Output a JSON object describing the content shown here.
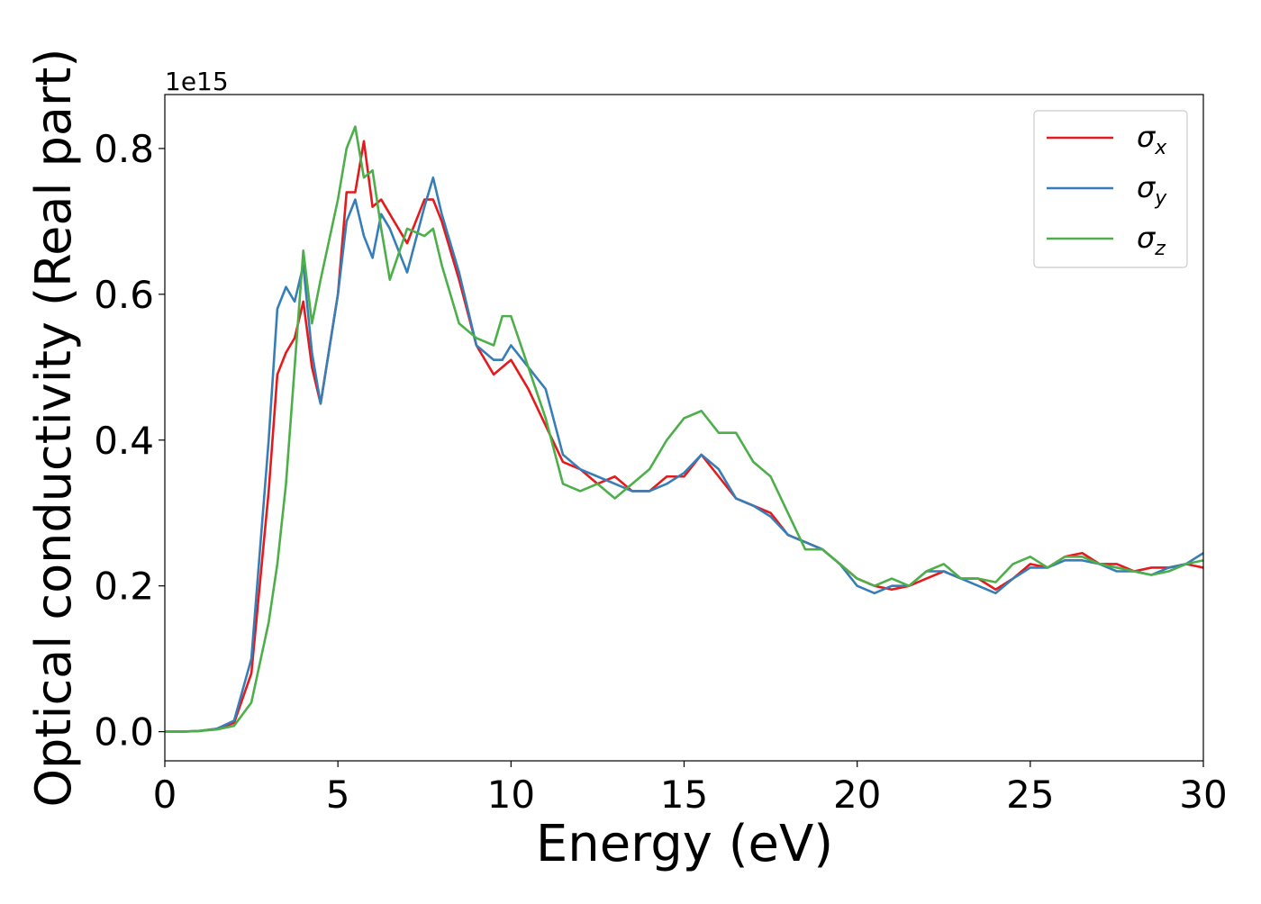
{
  "chart_data": {
    "type": "line",
    "x_label": "Energy (eV)",
    "y_label": "Optical conductivity (Real part)",
    "y_offset_label": "1e15",
    "x": [
      0,
      0.5,
      1,
      1.5,
      2,
      2.5,
      3,
      3.25,
      3.5,
      3.75,
      4,
      4.25,
      4.5,
      5,
      5.25,
      5.5,
      5.75,
      6,
      6.25,
      6.5,
      7,
      7.5,
      7.75,
      8,
      8.5,
      9,
      9.5,
      9.75,
      10,
      10.5,
      11,
      11.5,
      12,
      12.5,
      13,
      13.5,
      14,
      14.5,
      15,
      15.5,
      16,
      16.5,
      17,
      17.5,
      18,
      18.5,
      19,
      19.5,
      20,
      20.5,
      21,
      21.5,
      22,
      22.5,
      23,
      23.5,
      24,
      24.5,
      25,
      25.5,
      26,
      26.5,
      27,
      27.5,
      28,
      28.5,
      29,
      29.5,
      30
    ],
    "series": [
      {
        "name": "σx",
        "color": "#e41a1c",
        "values": [
          0,
          0,
          0.001,
          0.004,
          0.012,
          0.08,
          0.33,
          0.49,
          0.52,
          0.54,
          0.59,
          0.5,
          0.45,
          0.6,
          0.74,
          0.74,
          0.81,
          0.72,
          0.73,
          0.71,
          0.67,
          0.73,
          0.73,
          0.7,
          0.62,
          0.53,
          0.49,
          0.5,
          0.51,
          0.47,
          0.42,
          0.37,
          0.36,
          0.34,
          0.35,
          0.33,
          0.33,
          0.35,
          0.35,
          0.38,
          0.35,
          0.32,
          0.31,
          0.3,
          0.27,
          0.26,
          0.25,
          0.23,
          0.21,
          0.2,
          0.195,
          0.2,
          0.21,
          0.22,
          0.21,
          0.21,
          0.195,
          0.21,
          0.23,
          0.225,
          0.24,
          0.245,
          0.23,
          0.23,
          0.22,
          0.225,
          0.225,
          0.23,
          0.225
        ]
      },
      {
        "name": "σy",
        "color": "#377eb8",
        "values": [
          0,
          0,
          0.001,
          0.004,
          0.015,
          0.1,
          0.4,
          0.58,
          0.61,
          0.59,
          0.64,
          0.52,
          0.45,
          0.6,
          0.7,
          0.73,
          0.68,
          0.65,
          0.71,
          0.69,
          0.63,
          0.72,
          0.76,
          0.71,
          0.63,
          0.53,
          0.51,
          0.51,
          0.53,
          0.5,
          0.47,
          0.38,
          0.36,
          0.35,
          0.34,
          0.33,
          0.33,
          0.34,
          0.355,
          0.38,
          0.36,
          0.32,
          0.31,
          0.295,
          0.27,
          0.26,
          0.25,
          0.23,
          0.2,
          0.19,
          0.2,
          0.2,
          0.22,
          0.22,
          0.21,
          0.2,
          0.19,
          0.21,
          0.225,
          0.225,
          0.235,
          0.235,
          0.23,
          0.22,
          0.22,
          0.215,
          0.225,
          0.23,
          0.245
        ]
      },
      {
        "name": "σz",
        "color": "#4daf4a",
        "values": [
          0,
          0,
          0.001,
          0.003,
          0.008,
          0.04,
          0.15,
          0.23,
          0.34,
          0.5,
          0.66,
          0.56,
          0.62,
          0.73,
          0.8,
          0.83,
          0.76,
          0.77,
          0.69,
          0.62,
          0.69,
          0.68,
          0.69,
          0.64,
          0.56,
          0.54,
          0.53,
          0.57,
          0.57,
          0.5,
          0.43,
          0.34,
          0.33,
          0.34,
          0.32,
          0.34,
          0.36,
          0.4,
          0.43,
          0.44,
          0.41,
          0.41,
          0.37,
          0.35,
          0.3,
          0.25,
          0.25,
          0.23,
          0.21,
          0.2,
          0.21,
          0.2,
          0.22,
          0.23,
          0.21,
          0.21,
          0.205,
          0.23,
          0.24,
          0.225,
          0.24,
          0.24,
          0.23,
          0.225,
          0.22,
          0.215,
          0.22,
          0.23,
          0.235
        ]
      }
    ],
    "xlim": [
      0,
      30
    ],
    "xticks": [
      0,
      5,
      10,
      15,
      20,
      25,
      30
    ],
    "ylim": [
      -0.04,
      0.874
    ],
    "yticks": [
      {
        "value": 0,
        "label": "0.0"
      },
      0.2,
      0.4,
      0.6,
      0.8
    ],
    "grid": false,
    "legend": "upper right"
  }
}
